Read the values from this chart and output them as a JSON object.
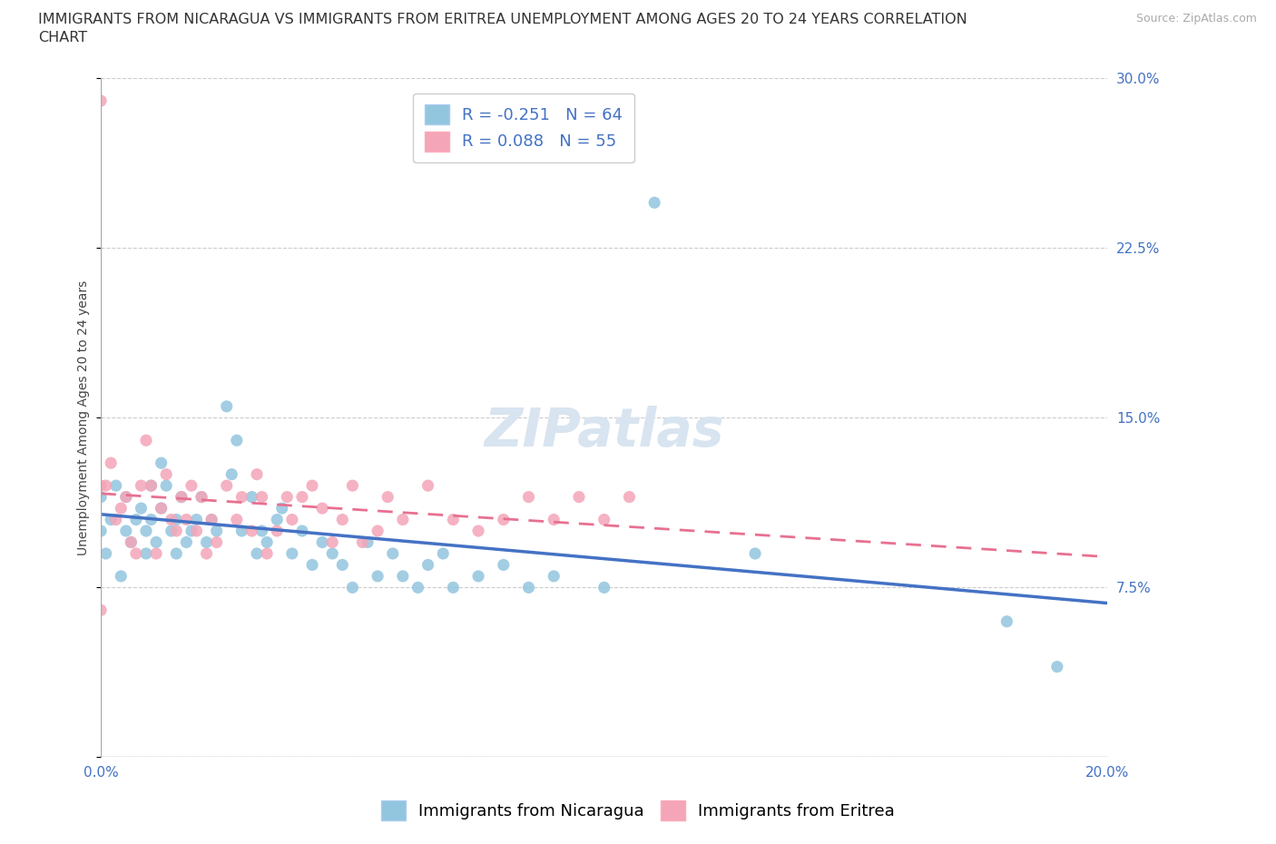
{
  "title_line1": "IMMIGRANTS FROM NICARAGUA VS IMMIGRANTS FROM ERITREA UNEMPLOYMENT AMONG AGES 20 TO 24 YEARS CORRELATION",
  "title_line2": "CHART",
  "source": "Source: ZipAtlas.com",
  "ylabel": "Unemployment Among Ages 20 to 24 years",
  "xlim": [
    0.0,
    0.2
  ],
  "ylim": [
    0.0,
    0.3
  ],
  "xticks": [
    0.0,
    0.05,
    0.1,
    0.15,
    0.2
  ],
  "xticklabels": [
    "0.0%",
    "",
    "",
    "",
    "20.0%"
  ],
  "ytick_right_labels": [
    "",
    "7.5%",
    "15.0%",
    "22.5%",
    "30.0%"
  ],
  "yticks": [
    0.0,
    0.075,
    0.15,
    0.225,
    0.3
  ],
  "legend_r1": "R = -0.251   N = 64",
  "legend_r2": "R = 0.088   N = 55",
  "color_nicaragua": "#92C5DE",
  "color_eritrea": "#F4A5B8",
  "color_line_nicaragua": "#4472C4",
  "color_line_eritrea": "#E87090",
  "color_tick_labels": "#4472C4",
  "watermark_text": "ZIPatlas",
  "nicaragua_x": [
    0.0,
    0.0,
    0.001,
    0.002,
    0.003,
    0.004,
    0.005,
    0.005,
    0.006,
    0.007,
    0.008,
    0.009,
    0.009,
    0.01,
    0.01,
    0.011,
    0.012,
    0.012,
    0.013,
    0.014,
    0.015,
    0.015,
    0.016,
    0.017,
    0.018,
    0.019,
    0.02,
    0.021,
    0.022,
    0.023,
    0.025,
    0.026,
    0.027,
    0.028,
    0.03,
    0.031,
    0.032,
    0.033,
    0.035,
    0.036,
    0.038,
    0.04,
    0.042,
    0.044,
    0.046,
    0.048,
    0.05,
    0.053,
    0.055,
    0.058,
    0.06,
    0.063,
    0.065,
    0.068,
    0.07,
    0.075,
    0.08,
    0.085,
    0.09,
    0.1,
    0.11,
    0.13,
    0.18,
    0.19
  ],
  "nicaragua_y": [
    0.1,
    0.115,
    0.09,
    0.105,
    0.12,
    0.08,
    0.1,
    0.115,
    0.095,
    0.105,
    0.11,
    0.09,
    0.1,
    0.12,
    0.105,
    0.095,
    0.11,
    0.13,
    0.12,
    0.1,
    0.105,
    0.09,
    0.115,
    0.095,
    0.1,
    0.105,
    0.115,
    0.095,
    0.105,
    0.1,
    0.155,
    0.125,
    0.14,
    0.1,
    0.115,
    0.09,
    0.1,
    0.095,
    0.105,
    0.11,
    0.09,
    0.1,
    0.085,
    0.095,
    0.09,
    0.085,
    0.075,
    0.095,
    0.08,
    0.09,
    0.08,
    0.075,
    0.085,
    0.09,
    0.075,
    0.08,
    0.085,
    0.075,
    0.08,
    0.075,
    0.245,
    0.09,
    0.06,
    0.04
  ],
  "eritrea_x": [
    0.0,
    0.0,
    0.0,
    0.001,
    0.002,
    0.003,
    0.004,
    0.005,
    0.006,
    0.007,
    0.008,
    0.009,
    0.01,
    0.011,
    0.012,
    0.013,
    0.014,
    0.015,
    0.016,
    0.017,
    0.018,
    0.019,
    0.02,
    0.021,
    0.022,
    0.023,
    0.025,
    0.027,
    0.028,
    0.03,
    0.031,
    0.032,
    0.033,
    0.035,
    0.037,
    0.038,
    0.04,
    0.042,
    0.044,
    0.046,
    0.048,
    0.05,
    0.052,
    0.055,
    0.057,
    0.06,
    0.065,
    0.07,
    0.075,
    0.08,
    0.085,
    0.09,
    0.095,
    0.1,
    0.105
  ],
  "eritrea_y": [
    0.29,
    0.12,
    0.065,
    0.12,
    0.13,
    0.105,
    0.11,
    0.115,
    0.095,
    0.09,
    0.12,
    0.14,
    0.12,
    0.09,
    0.11,
    0.125,
    0.105,
    0.1,
    0.115,
    0.105,
    0.12,
    0.1,
    0.115,
    0.09,
    0.105,
    0.095,
    0.12,
    0.105,
    0.115,
    0.1,
    0.125,
    0.115,
    0.09,
    0.1,
    0.115,
    0.105,
    0.115,
    0.12,
    0.11,
    0.095,
    0.105,
    0.12,
    0.095,
    0.1,
    0.115,
    0.105,
    0.12,
    0.105,
    0.1,
    0.105,
    0.115,
    0.105,
    0.115,
    0.105,
    0.115
  ],
  "title_fontsize": 11.5,
  "axis_label_fontsize": 10,
  "tick_fontsize": 11,
  "legend_fontsize": 13,
  "watermark_fontsize": 42,
  "watermark_color": "#D8E4F0",
  "background_color": "#FFFFFF",
  "grid_color": "#CCCCCC"
}
